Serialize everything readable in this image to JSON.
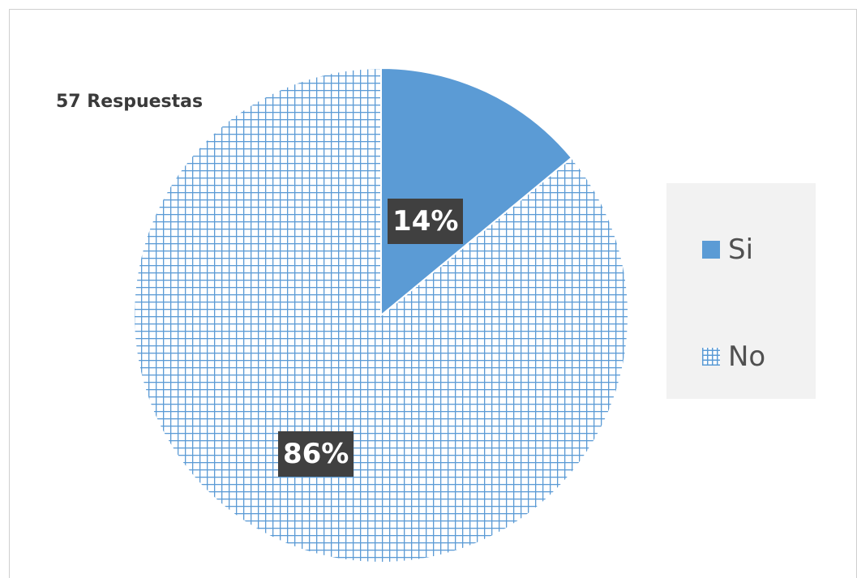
{
  "annotation": "57 Respuestas",
  "colors": {
    "accent": "#5b9bd5",
    "label_bg": "#404040",
    "legend_bg": "#f2f2f2"
  },
  "chart_data": {
    "type": "pie",
    "title": "",
    "annotation": "57 Respuestas",
    "slices": [
      {
        "label": "Si",
        "value": 14,
        "data_label": "14%",
        "fill": "solid"
      },
      {
        "label": "No",
        "value": 86,
        "data_label": "86%",
        "fill": "hatched"
      }
    ],
    "start_angle_deg": 0,
    "direction": "clockwise",
    "legend_position": "right"
  }
}
